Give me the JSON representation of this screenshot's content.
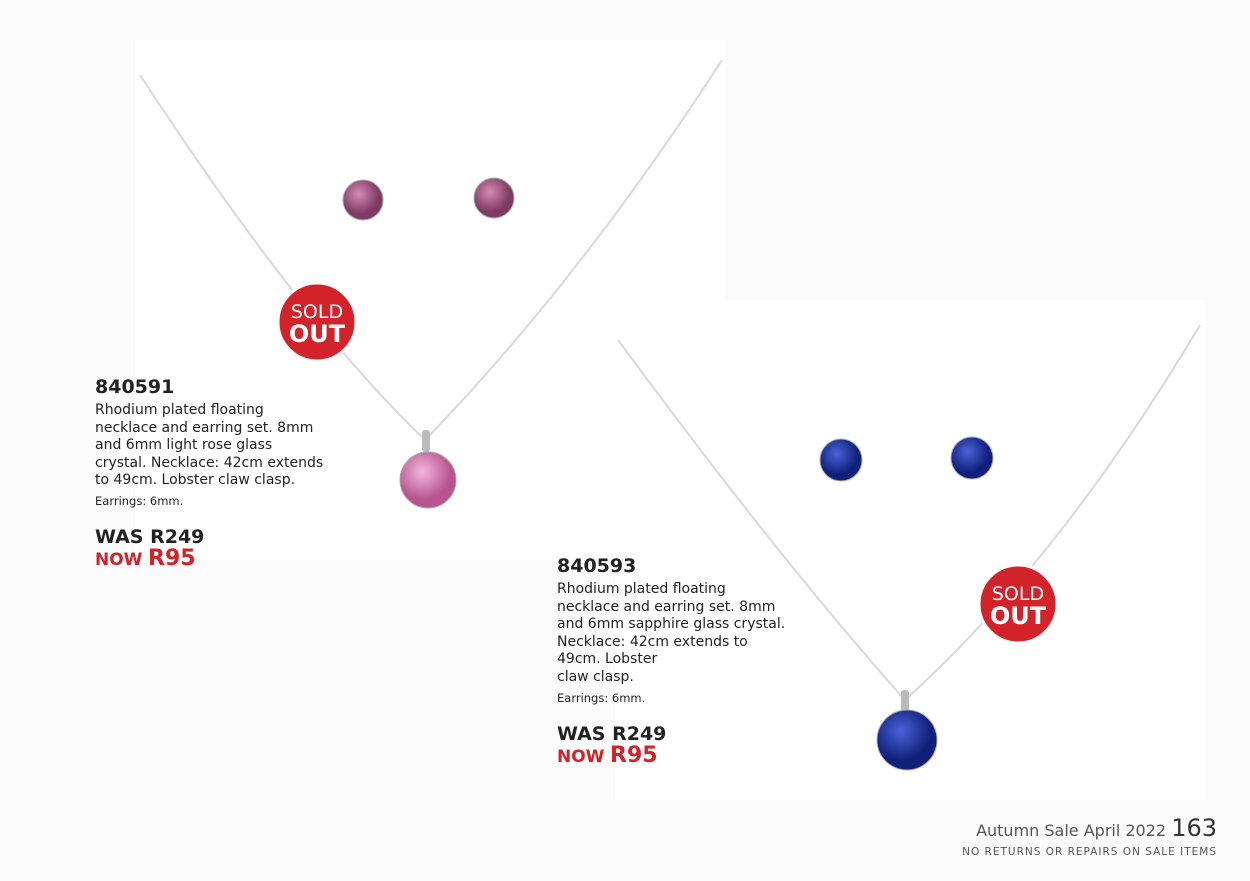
{
  "products": [
    {
      "code": "840591",
      "description": [
        "Rhodium plated floating",
        "necklace and earring set. 8mm",
        "and 6mm light rose glass",
        "crystal. Necklace: 42cm extends",
        "to 49cm. Lobster claw clasp."
      ],
      "earrings": "Earrings: 6mm.",
      "was": "WAS R249",
      "now_label": "NOW",
      "now_price": "R95",
      "badge": [
        "SOLD",
        "OUT"
      ]
    },
    {
      "code": "840593",
      "description": [
        "Rhodium plated floating",
        "necklace and earring set. 8mm",
        "and 6mm sapphire glass crystal.",
        "Necklace: 42cm extends to",
        "49cm. Lobster",
        "claw clasp."
      ],
      "earrings": "Earrings: 6mm.",
      "was": "WAS R249",
      "now_label": "NOW",
      "now_price": "R95",
      "badge": [
        "SOLD",
        "OUT"
      ]
    }
  ],
  "footer": {
    "title": "Autumn Sale April 2022",
    "page": "163",
    "note": "NO RETURNS OR REPAIRS ON SALE ITEMS"
  }
}
